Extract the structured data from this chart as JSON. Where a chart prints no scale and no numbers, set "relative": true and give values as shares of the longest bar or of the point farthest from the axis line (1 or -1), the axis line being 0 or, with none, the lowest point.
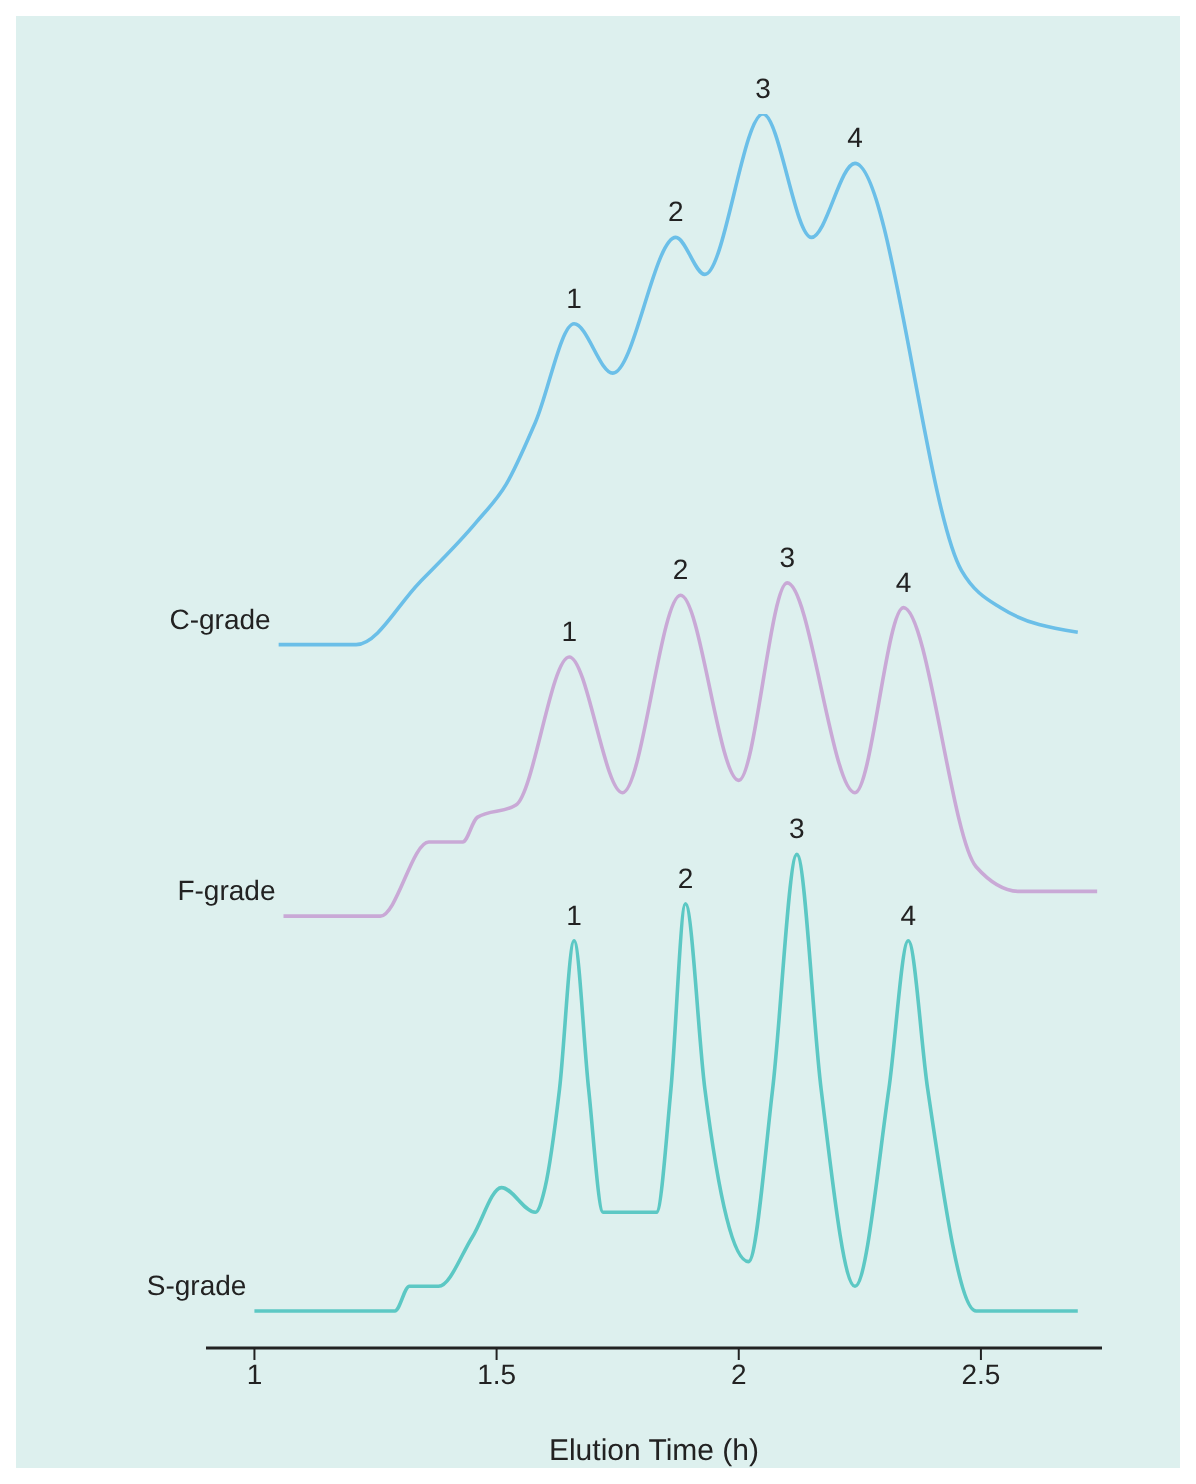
{
  "chart_data": {
    "type": "line",
    "relative": true,
    "xlabel": "Elution Time (h)",
    "xlim": [
      0.9,
      2.75
    ],
    "xticks": [
      1,
      1.5,
      2,
      2.5
    ],
    "marker": "none",
    "line_style": "solid",
    "grid": false,
    "series": [
      {
        "name": "C-grade",
        "color": "#6bbfe8",
        "x": [
          1.05,
          1.21,
          1.34,
          1.46,
          1.52,
          1.58,
          1.66,
          1.74,
          1.87,
          1.93,
          2.05,
          2.15,
          2.24,
          2.46,
          2.54,
          2.7
        ],
        "values": [
          0.57,
          0.57,
          0.62,
          0.67,
          0.7,
          0.75,
          0.83,
          0.79,
          0.9,
          0.87,
          1.0,
          0.9,
          0.96,
          0.63,
          0.6,
          0.58
        ]
      },
      {
        "name": "F-grade",
        "color": "#c9a9d6",
        "x": [
          1.06,
          1.26,
          1.36,
          1.43,
          1.46,
          1.54,
          1.65,
          1.76,
          1.88,
          2.0,
          2.1,
          2.24,
          2.34,
          2.49,
          2.58,
          2.74
        ],
        "values": [
          0.35,
          0.35,
          0.41,
          0.41,
          0.43,
          0.44,
          0.56,
          0.45,
          0.61,
          0.46,
          0.62,
          0.45,
          0.6,
          0.39,
          0.37,
          0.37
        ]
      },
      {
        "name": "S-grade",
        "color": "#5cc8c4",
        "x": [
          1.0,
          1.29,
          1.32,
          1.38,
          1.45,
          1.51,
          1.58,
          1.6,
          1.63,
          1.66,
          1.69,
          1.72,
          1.77,
          1.83,
          1.86,
          1.89,
          1.93,
          2.02,
          2.07,
          2.12,
          2.17,
          2.24,
          2.31,
          2.35,
          2.39,
          2.49,
          2.7
        ],
        "values": [
          0.03,
          0.03,
          0.05,
          0.05,
          0.09,
          0.13,
          0.11,
          0.13,
          0.21,
          0.33,
          0.21,
          0.11,
          0.11,
          0.11,
          0.21,
          0.36,
          0.21,
          0.07,
          0.21,
          0.4,
          0.21,
          0.05,
          0.21,
          0.33,
          0.21,
          0.03,
          0.03
        ]
      }
    ],
    "annotations": [
      {
        "text": "1",
        "x": 1.66,
        "y": 0.83
      },
      {
        "text": "2",
        "x": 1.87,
        "y": 0.9
      },
      {
        "text": "3",
        "x": 2.05,
        "y": 1.0
      },
      {
        "text": "4",
        "x": 2.24,
        "y": 0.96
      },
      {
        "text": "1",
        "x": 1.65,
        "y": 0.56
      },
      {
        "text": "2",
        "x": 1.88,
        "y": 0.61
      },
      {
        "text": "3",
        "x": 2.1,
        "y": 0.62
      },
      {
        "text": "4",
        "x": 2.34,
        "y": 0.6
      },
      {
        "text": "1",
        "x": 1.66,
        "y": 0.33
      },
      {
        "text": "2",
        "x": 1.89,
        "y": 0.36
      },
      {
        "text": "3",
        "x": 2.12,
        "y": 0.4
      },
      {
        "text": "4",
        "x": 2.35,
        "y": 0.33
      }
    ]
  }
}
